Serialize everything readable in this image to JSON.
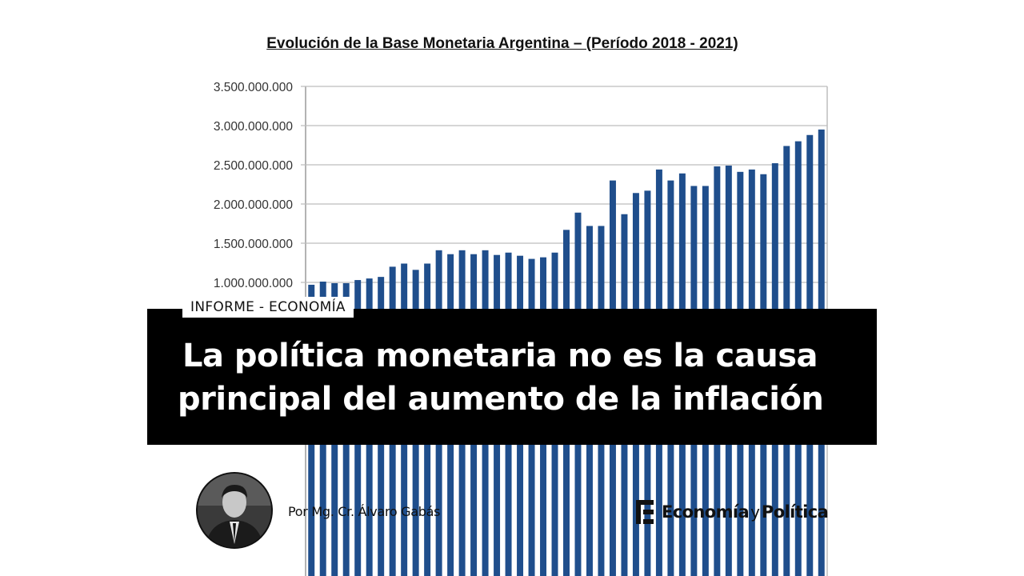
{
  "chart_data": {
    "type": "bar",
    "title": "Evolución de la Base Monetaria Argentina – (Período 2018 - 2021)",
    "xlabel": "",
    "ylabel": "",
    "ylim": [
      0,
      3500000000
    ],
    "ytick_labels": [
      "3.500.000.000",
      "3.000.000.000",
      "2.500.000.000",
      "2.000.000.000",
      "1.500.000.000",
      "1.000.000.000"
    ],
    "ytick_values": [
      3500000000,
      3000000000,
      2500000000,
      2000000000,
      1500000000,
      1000000000
    ],
    "grid": true,
    "bar_color": "#1f4e8c",
    "values": [
      970000000,
      1010000000,
      990000000,
      990000000,
      1030000000,
      1050000000,
      1070000000,
      1200000000,
      1240000000,
      1160000000,
      1240000000,
      1410000000,
      1360000000,
      1410000000,
      1360000000,
      1410000000,
      1350000000,
      1380000000,
      1340000000,
      1300000000,
      1320000000,
      1380000000,
      1670000000,
      1890000000,
      1720000000,
      1720000000,
      2300000000,
      1870000000,
      2140000000,
      2170000000,
      2440000000,
      2300000000,
      2390000000,
      2230000000,
      2230000000,
      2480000000,
      2490000000,
      2410000000,
      2440000000,
      2380000000,
      2520000000,
      2740000000,
      2800000000,
      2880000000,
      2950000000
    ]
  },
  "headline": {
    "section_label": "INFORME - ECONOMÍA",
    "line1": "La política monetaria no es la causa",
    "line2": "principal del aumento de la inflación"
  },
  "byline": {
    "author": "Por Mg. Cr. Álvaro Gabás",
    "avatar_icon": "author-photo"
  },
  "brand": {
    "word1": "Economía",
    "word2": "y",
    "word3": "Política",
    "icon": "brand-logo-icon"
  }
}
